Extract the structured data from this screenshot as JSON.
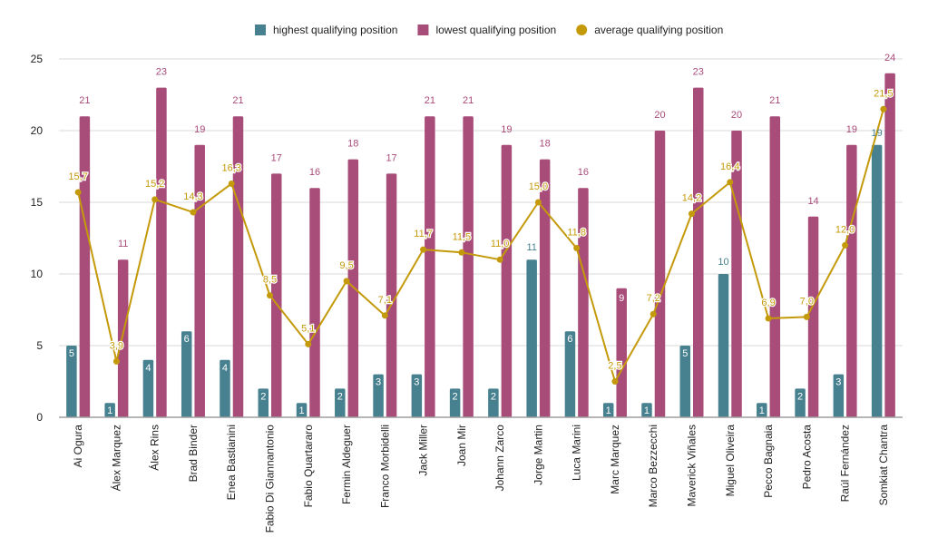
{
  "chart_data": {
    "type": "bar",
    "title": "",
    "xlabel": "",
    "ylabel": "",
    "ylim": [
      0,
      25
    ],
    "yticks": [
      0,
      5,
      10,
      15,
      20,
      25
    ],
    "grid": true,
    "legend_position": "top-center",
    "categories": [
      "Ai Ogura",
      "Álex Marquez",
      "Álex Rins",
      "Brad Binder",
      "Enea Bastianini",
      "Fabio Di Giannantonio",
      "Fabio Quartararo",
      "Fermin Aldeguer",
      "Franco Morbidelli",
      "Jack Miller",
      "Joan Mir",
      "Johann Zarco",
      "Jorge Martin",
      "Luca Marini",
      "Marc Marquez",
      "Marco Bezzecchi",
      "Maverick Viñales",
      "Miguel Oliveira",
      "Pecco Bagnaia",
      "Pedro Acosta",
      "Raúl Fernández",
      "Somkiat Chantra"
    ],
    "series": [
      {
        "name": "highest qualifying position",
        "type": "bar",
        "color": "#47808f",
        "values": [
          5,
          1,
          4,
          6,
          4,
          2,
          1,
          2,
          3,
          3,
          2,
          2,
          11,
          6,
          1,
          1,
          5,
          10,
          1,
          2,
          3,
          19
        ],
        "labels": [
          "5",
          "1",
          "4",
          "6",
          "4",
          "2",
          "1",
          "2",
          "3",
          "3",
          "2",
          "2",
          "11",
          "6",
          "1",
          "1",
          "5",
          "10",
          "1",
          "2",
          "3",
          "19"
        ]
      },
      {
        "name": "lowest qualifying position",
        "type": "bar",
        "color": "#a84c7a",
        "values": [
          21,
          11,
          23,
          19,
          21,
          17,
          16,
          18,
          17,
          21,
          21,
          19,
          18,
          16,
          9,
          20,
          23,
          20,
          21,
          14,
          19,
          24
        ],
        "labels": [
          "21",
          "11",
          "23",
          "19",
          "21",
          "17",
          "16",
          "18",
          "17",
          "21",
          "21",
          "19",
          "18",
          "16",
          "9",
          "20",
          "23",
          "20",
          "21",
          "14",
          "19",
          "24"
        ]
      },
      {
        "name": "average qualifying position",
        "type": "line",
        "color": "#c49a0a",
        "values": [
          15.7,
          3.9,
          15.2,
          14.3,
          16.3,
          8.5,
          5.1,
          9.5,
          7.1,
          11.7,
          11.5,
          11.0,
          15.0,
          11.8,
          2.5,
          7.2,
          14.2,
          16.4,
          6.9,
          7.0,
          12.0,
          21.5
        ],
        "labels": [
          "15,7",
          "3,9",
          "15,2",
          "14,3",
          "16,3",
          "8,5",
          "5,1",
          "9,5",
          "7,1",
          "11,7",
          "11,5",
          "11,0",
          "15,0",
          "11,8",
          "2,5",
          "7,2",
          "14,2",
          "16,4",
          "6,9",
          "7,0",
          "12,0",
          "21,5"
        ]
      }
    ]
  }
}
